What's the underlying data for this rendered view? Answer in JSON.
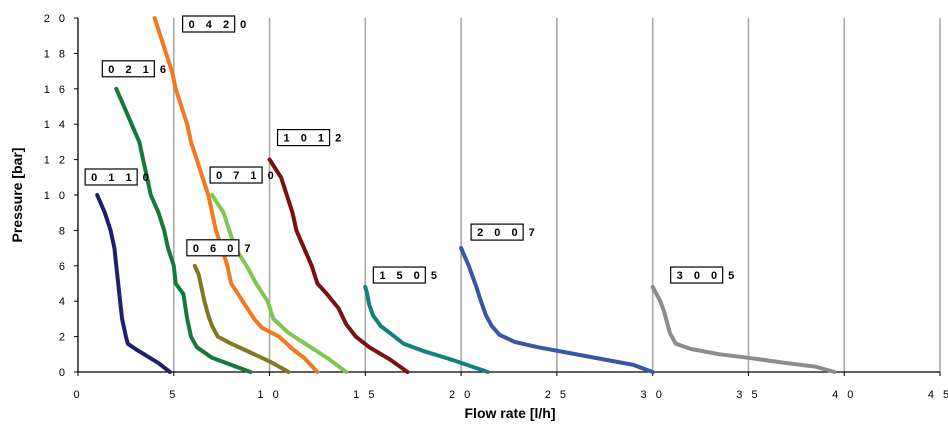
{
  "chart_data": {
    "type": "line",
    "title": "",
    "xlabel": "Flow rate [l/h]",
    "ylabel": "Pressure [bar]",
    "xlim": [
      0,
      45
    ],
    "ylim": [
      0,
      20
    ],
    "x_ticks": [
      0,
      5,
      10,
      15,
      20,
      25,
      30,
      35,
      40,
      45
    ],
    "y_ticks": [
      0,
      2,
      4,
      6,
      8,
      10,
      12,
      14,
      16,
      18,
      20
    ],
    "x_tick_labels": [
      "0",
      "5",
      "1 0",
      "1 5",
      "2 0",
      "2 5",
      "3 0",
      "3 5",
      "4 0",
      "4 5"
    ],
    "y_tick_labels": [
      "0",
      "2",
      "4",
      "6",
      "8",
      "1 0",
      "1 2",
      "1 4",
      "1 6",
      "1 8",
      "2 0"
    ],
    "grid": "vertical",
    "legend": "none",
    "series": [
      {
        "name": "0 1 1 0",
        "color": "#1f1f6b",
        "points": [
          [
            1.0,
            10
          ],
          [
            1.4,
            9
          ],
          [
            1.7,
            8
          ],
          [
            1.9,
            7
          ],
          [
            2.0,
            6
          ],
          [
            2.1,
            5
          ],
          [
            2.2,
            4
          ],
          [
            2.3,
            3
          ],
          [
            2.5,
            2
          ],
          [
            2.6,
            1.6
          ],
          [
            3.0,
            1.3
          ],
          [
            3.6,
            0.9
          ],
          [
            4.2,
            0.5
          ],
          [
            4.8,
            0
          ]
        ]
      },
      {
        "name": "0 2 1 6",
        "color": "#137a3a",
        "points": [
          [
            2.0,
            16
          ],
          [
            2.4,
            15
          ],
          [
            2.8,
            14
          ],
          [
            3.2,
            13
          ],
          [
            3.4,
            12
          ],
          [
            3.6,
            11
          ],
          [
            3.8,
            10
          ],
          [
            4.2,
            9
          ],
          [
            4.5,
            8
          ],
          [
            4.7,
            7
          ],
          [
            5.0,
            6
          ],
          [
            5.1,
            5
          ],
          [
            5.5,
            4.4
          ],
          [
            5.7,
            3
          ],
          [
            5.9,
            2
          ],
          [
            6.2,
            1.4
          ],
          [
            7.0,
            0.8
          ],
          [
            8.0,
            0.4
          ],
          [
            9.0,
            0
          ]
        ]
      },
      {
        "name": "0 4 2 0",
        "color": "#f4781e",
        "points": [
          [
            4.0,
            20
          ],
          [
            4.3,
            19
          ],
          [
            4.6,
            18
          ],
          [
            4.9,
            17
          ],
          [
            5.1,
            16
          ],
          [
            5.4,
            15
          ],
          [
            5.7,
            14
          ],
          [
            5.9,
            13
          ],
          [
            6.2,
            12
          ],
          [
            6.5,
            11
          ],
          [
            6.8,
            10
          ],
          [
            7.0,
            9
          ],
          [
            7.2,
            8
          ],
          [
            7.5,
            7
          ],
          [
            7.8,
            6
          ],
          [
            8.0,
            5
          ],
          [
            8.6,
            4
          ],
          [
            9.2,
            3
          ],
          [
            9.6,
            2.5
          ],
          [
            10.5,
            2
          ],
          [
            11.2,
            1.3
          ],
          [
            11.8,
            0.8
          ],
          [
            12.5,
            0
          ]
        ]
      },
      {
        "name": "0 6 0 7",
        "color": "#7e7a22",
        "points": [
          [
            6.1,
            6
          ],
          [
            6.3,
            5.5
          ],
          [
            6.4,
            5
          ],
          [
            6.6,
            4
          ],
          [
            6.8,
            3.2
          ],
          [
            7.0,
            2.6
          ],
          [
            7.3,
            2
          ],
          [
            8.0,
            1.6
          ],
          [
            9.0,
            1.1
          ],
          [
            10.0,
            0.6
          ],
          [
            11.0,
            0
          ]
        ]
      },
      {
        "name": "0 7 1 0",
        "color": "#7ec852",
        "points": [
          [
            7.0,
            10
          ],
          [
            7.3,
            9.5
          ],
          [
            7.6,
            9
          ],
          [
            7.9,
            8
          ],
          [
            8.2,
            7
          ],
          [
            8.8,
            6
          ],
          [
            9.3,
            5
          ],
          [
            9.9,
            4
          ],
          [
            10.2,
            3
          ],
          [
            11.0,
            2.2
          ],
          [
            12.0,
            1.5
          ],
          [
            13.0,
            0.8
          ],
          [
            14.0,
            0
          ]
        ]
      },
      {
        "name": "1 0 1 2",
        "color": "#7a1010",
        "points": [
          [
            10.0,
            12
          ],
          [
            10.3,
            11.5
          ],
          [
            10.6,
            11
          ],
          [
            10.9,
            10
          ],
          [
            11.2,
            9
          ],
          [
            11.4,
            8
          ],
          [
            11.8,
            7
          ],
          [
            12.2,
            6
          ],
          [
            12.5,
            5
          ],
          [
            13.0,
            4.4
          ],
          [
            13.6,
            3.6
          ],
          [
            14.0,
            2.7
          ],
          [
            14.5,
            2
          ],
          [
            15.2,
            1.4
          ],
          [
            16.3,
            0.7
          ],
          [
            17.2,
            0
          ]
        ]
      },
      {
        "name": "1 5 0 5",
        "color": "#12807f",
        "points": [
          [
            15.0,
            4.8
          ],
          [
            15.1,
            4.4
          ],
          [
            15.2,
            3.8
          ],
          [
            15.4,
            3.2
          ],
          [
            15.8,
            2.6
          ],
          [
            16.4,
            2.1
          ],
          [
            17.0,
            1.6
          ],
          [
            18.0,
            1.2
          ],
          [
            19.5,
            0.7
          ],
          [
            21.4,
            0
          ]
        ]
      },
      {
        "name": "2 0 0 7",
        "color": "#3656a8",
        "points": [
          [
            20.0,
            7
          ],
          [
            20.2,
            6.5
          ],
          [
            20.4,
            6
          ],
          [
            20.6,
            5.4
          ],
          [
            20.8,
            4.8
          ],
          [
            21.0,
            4.1
          ],
          [
            21.3,
            3.2
          ],
          [
            21.6,
            2.6
          ],
          [
            22.0,
            2.1
          ],
          [
            22.8,
            1.7
          ],
          [
            24.0,
            1.4
          ],
          [
            25.5,
            1.1
          ],
          [
            27.5,
            0.7
          ],
          [
            29.0,
            0.4
          ],
          [
            30.0,
            0
          ]
        ]
      },
      {
        "name": "3 0 0 5",
        "color": "#8c8c8c",
        "points": [
          [
            30.0,
            4.8
          ],
          [
            30.2,
            4.4
          ],
          [
            30.4,
            4
          ],
          [
            30.6,
            3.4
          ],
          [
            30.8,
            2.6
          ],
          [
            30.9,
            2.2
          ],
          [
            31.2,
            1.6
          ],
          [
            32.0,
            1.3
          ],
          [
            33.5,
            1.0
          ],
          [
            35.0,
            0.8
          ],
          [
            37.0,
            0.5
          ],
          [
            38.5,
            0.3
          ],
          [
            39.5,
            0
          ]
        ]
      }
    ]
  }
}
